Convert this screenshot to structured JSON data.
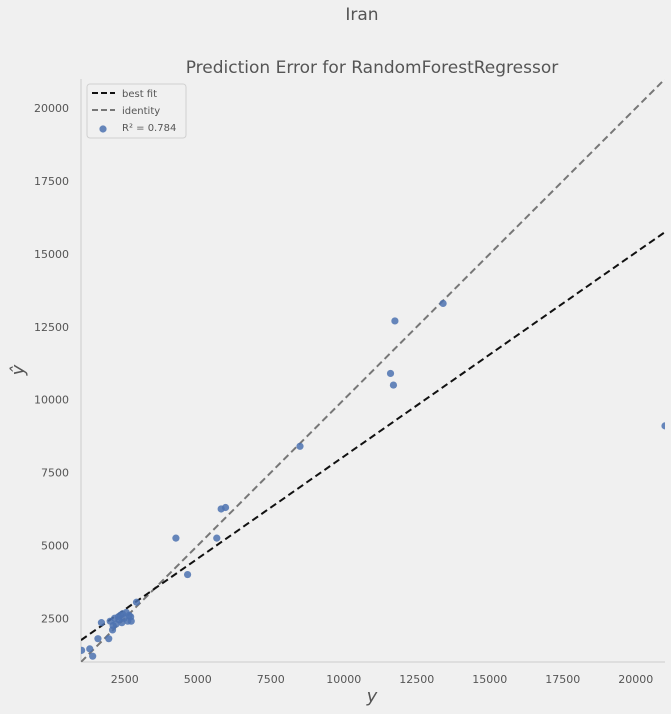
{
  "suptitle": "Iran",
  "chart_data": {
    "type": "scatter",
    "title": "Prediction Error for RandomForestRegressor",
    "xlabel": "y",
    "ylabel": "ŷ",
    "xlim": [
      1000,
      21000
    ],
    "ylim": [
      1000,
      21000
    ],
    "xticks": [
      2500,
      5000,
      7500,
      10000,
      12500,
      15000,
      17500,
      20000
    ],
    "yticks": [
      2500,
      5000,
      7500,
      10000,
      12500,
      15000,
      17500,
      20000
    ],
    "grid": false,
    "legend_position": "top-left",
    "legend": [
      {
        "label": "best fit",
        "style": "dashed",
        "color": "#111111"
      },
      {
        "label": "identity",
        "style": "dashed",
        "color": "#777777"
      },
      {
        "label": "R² = 0.784",
        "style": "marker",
        "color": "#4c72b0"
      }
    ],
    "best_fit": {
      "slope": 0.7,
      "intercept": 1050
    },
    "points": {
      "x": [
        1020,
        1300,
        1400,
        1580,
        1700,
        1950,
        2000,
        2080,
        2100,
        2150,
        2200,
        2280,
        2300,
        2350,
        2400,
        2420,
        2480,
        2550,
        2600,
        2650,
        2700,
        2720,
        2900,
        4250,
        4650,
        5650,
        5800,
        5950,
        8500,
        11600,
        11700,
        11750,
        13400,
        21000
      ],
      "y": [
        1400,
        1450,
        1200,
        1800,
        2350,
        1800,
        2400,
        2100,
        2250,
        2500,
        2300,
        2550,
        2450,
        2600,
        2350,
        2650,
        2500,
        2700,
        2400,
        2600,
        2550,
        2400,
        3050,
        5250,
        4000,
        5250,
        6250,
        6300,
        8400,
        10900,
        10500,
        12700,
        13300,
        9100
      ]
    },
    "colors": {
      "points": "#4c72b0",
      "best_fit": "#111111",
      "identity": "#777777",
      "axis": "#cccccc"
    }
  }
}
